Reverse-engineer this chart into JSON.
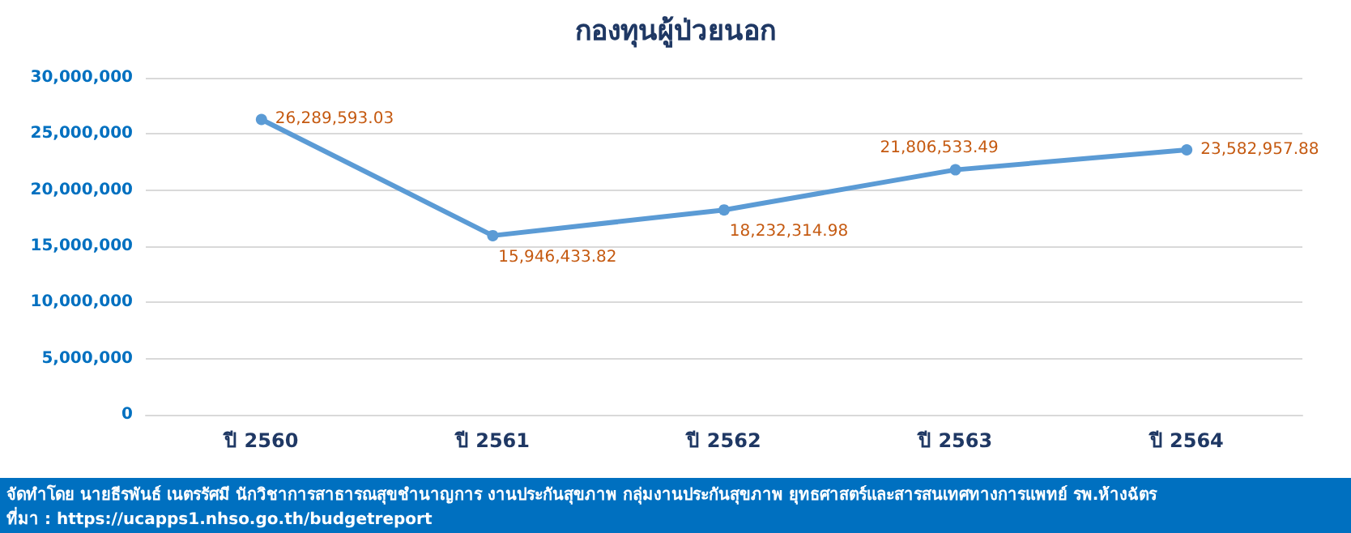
{
  "chart_data": {
    "type": "line",
    "title": "กองทุนผู้ป่วยนอก",
    "categories": [
      "ปี 2560",
      "ปี 2561",
      "ปี 2562",
      "ปี 2563",
      "ปี 2564"
    ],
    "series": [
      {
        "color": "#5b9bd5",
        "values": [
          26289593.03,
          15946433.82,
          18232314.98,
          21806533.49,
          23582957.88
        ],
        "value_labels": [
          "26,289,593.03",
          "15,946,433.82",
          "18,232,314.98",
          "21,806,533.49",
          "23,582,957.88"
        ]
      }
    ],
    "ylim": [
      0,
      30000000
    ],
    "yticks": [
      0,
      {
        "value": 5000000,
        "label": "5,000,000"
      },
      {
        "value": 10000000,
        "label": "10,000,000"
      },
      {
        "value": 15000000,
        "label": "15,000,000"
      },
      {
        "value": 20000000,
        "label": "20,000,000"
      },
      {
        "value": 25000000,
        "label": "25,000,000"
      },
      {
        "value": 30000000,
        "label": "30,000,000"
      }
    ],
    "grid": "y",
    "marker": "circle",
    "annotations": [
      "จัดทำโดย นายธีรพันธ์ เนตรรัศมี นักวิชาการสาธารณสุขชำนาญการ งานประกันสุขภาพ กลุ่มงานประกันสุขภาพ ยุทธศาสตร์และสารสนเทศทางการแพทย์ รพ.ห้างฉัตร",
      "ที่มา : https://ucapps1.nhso.go.th/budgetreport"
    ]
  }
}
